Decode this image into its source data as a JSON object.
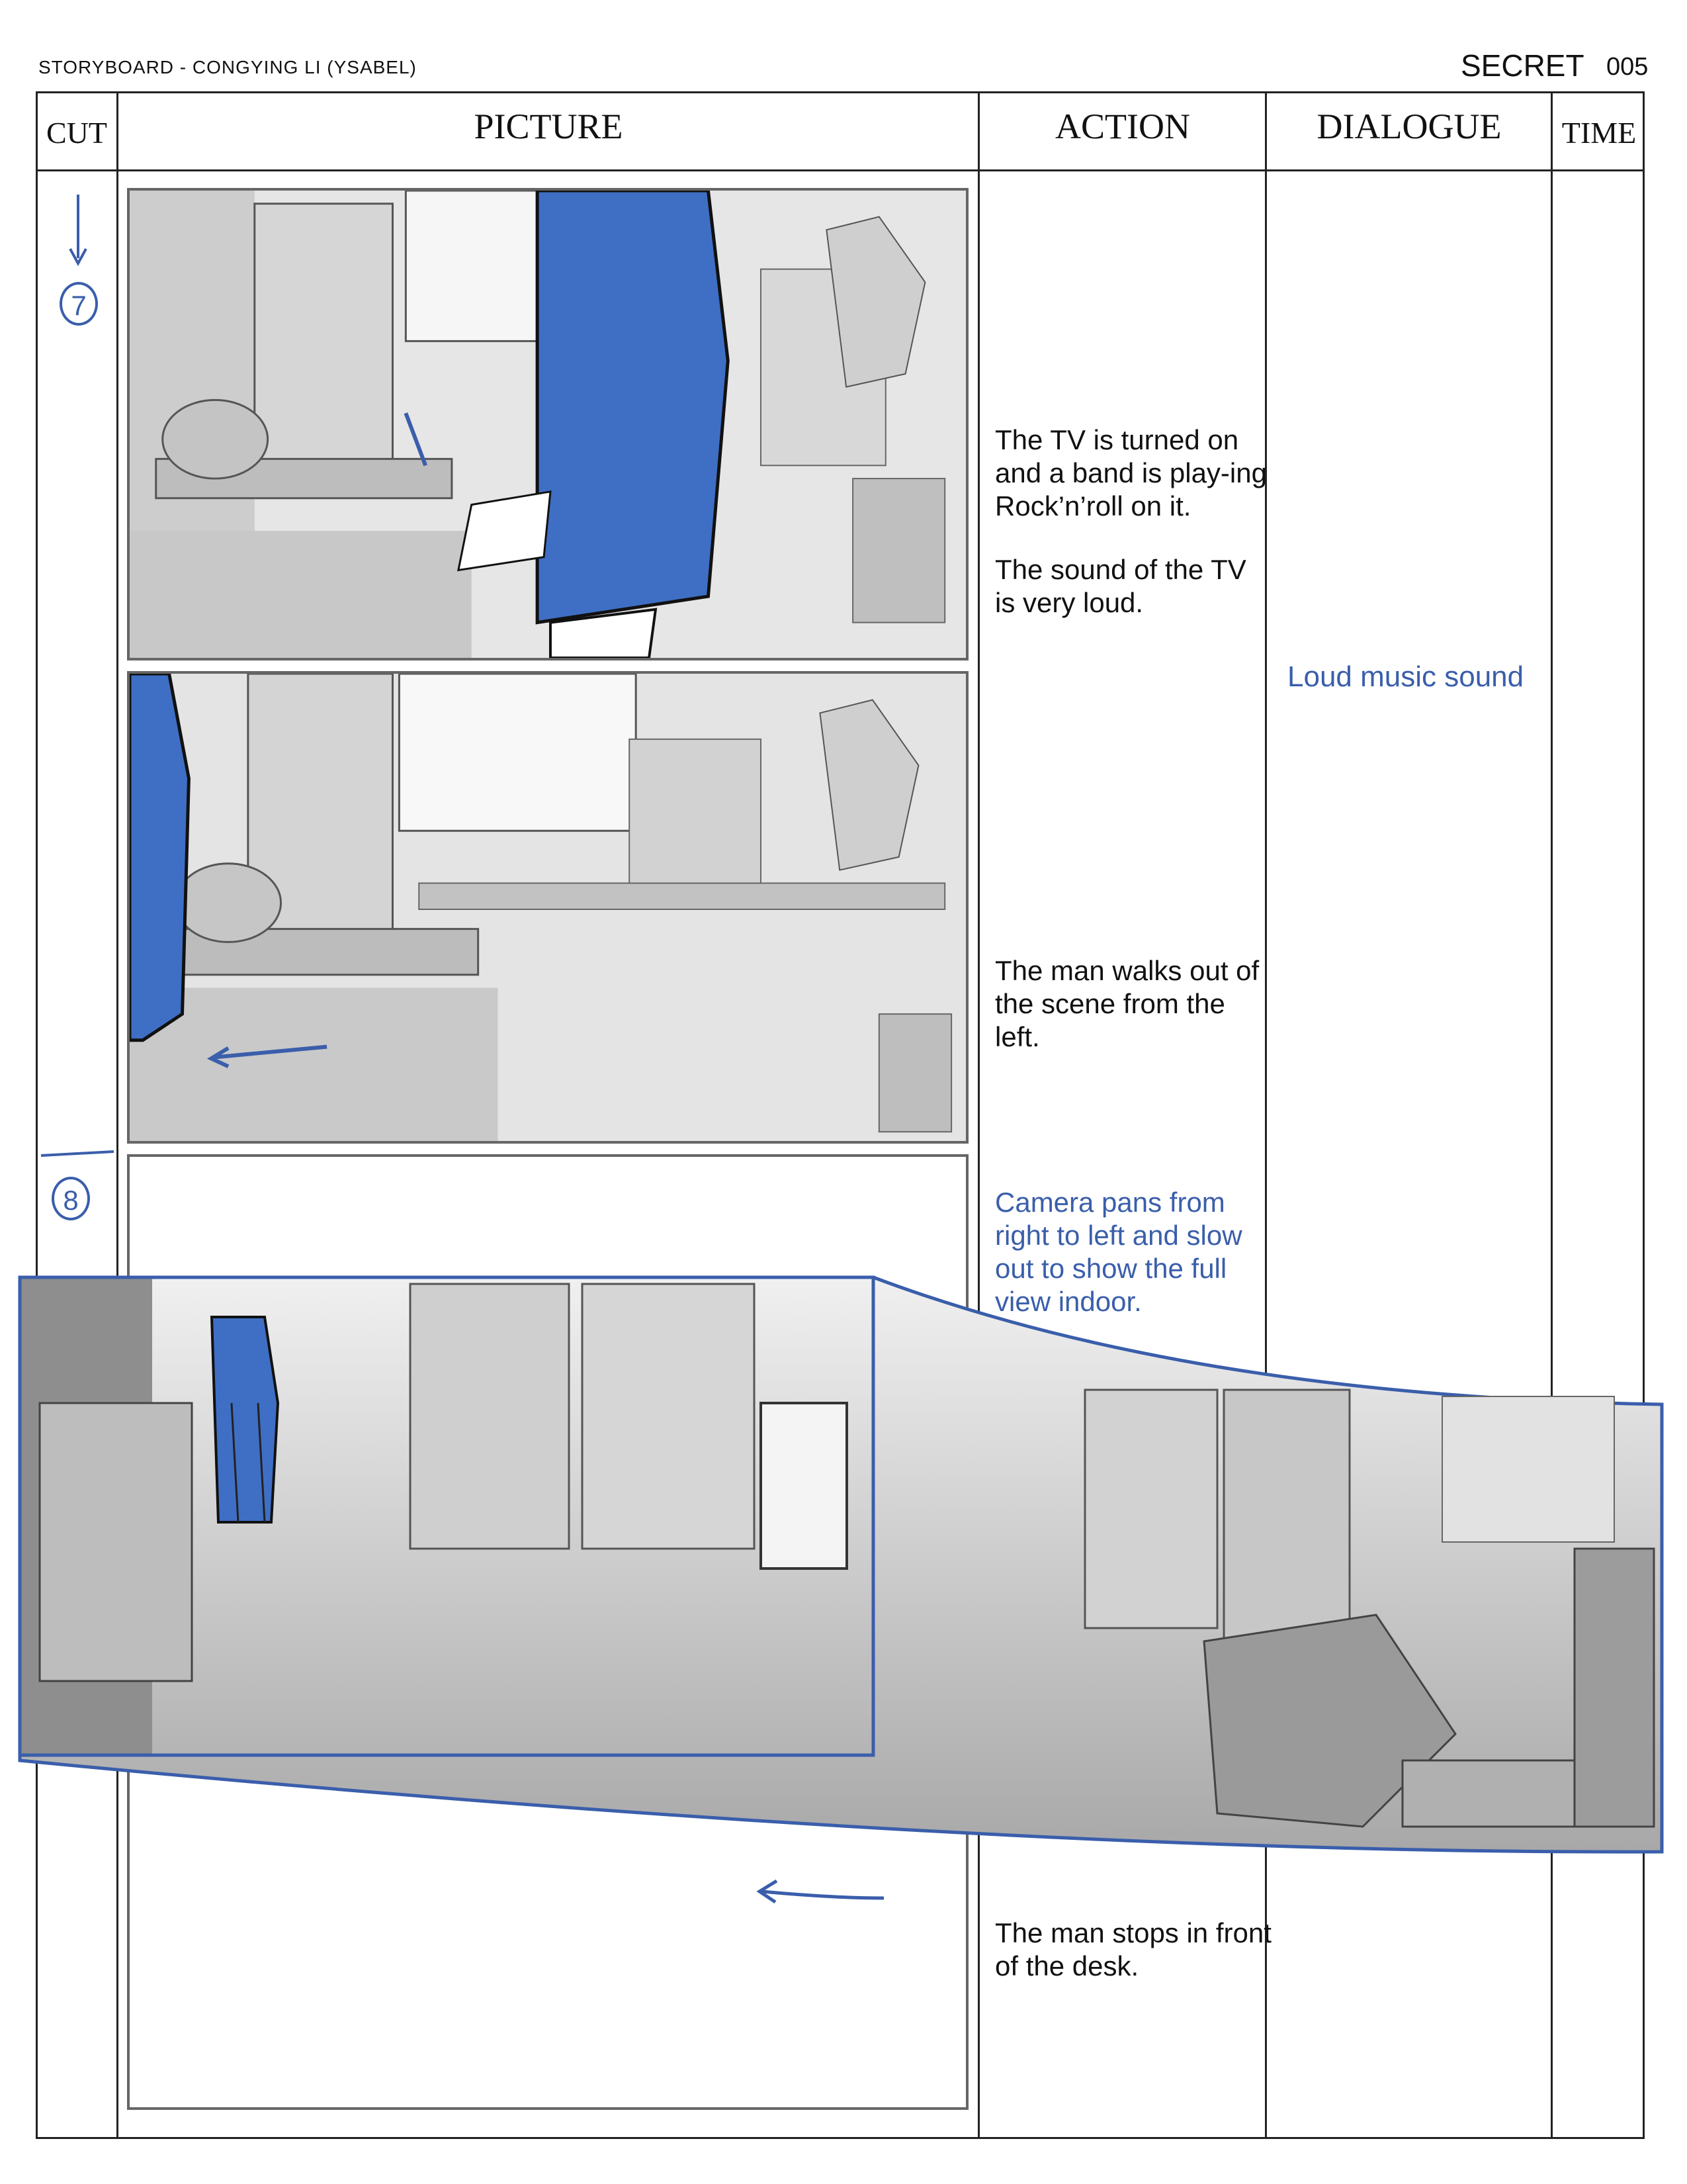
{
  "header": {
    "storyboard_credit": "STORYBOARD - CONGYING LI (YSABEL)",
    "project_title": "SECRET",
    "page_number": "005"
  },
  "columns": {
    "cut": "CUT",
    "picture": "PICTURE",
    "action": "ACTION",
    "dialogue": "DIALOGUE",
    "time": "TIME"
  },
  "cuts": [
    "7",
    "8"
  ],
  "actions": {
    "a1": "The TV is turned on and a band is play-ing Rock’n’roll on it.",
    "a2": "The sound of the TV is very loud.",
    "a3": "The man walks out of the scene from the left.",
    "a4": "Camera pans from right to left and slow out to show the full view indoor.",
    "a5": "The man stops in front of the desk."
  },
  "dialogue": {
    "d1": "Loud music sound"
  },
  "colors": {
    "annotation_blue": "#3a5eab",
    "sketch_gray": "#cfcfcf",
    "ink": "#222222"
  }
}
